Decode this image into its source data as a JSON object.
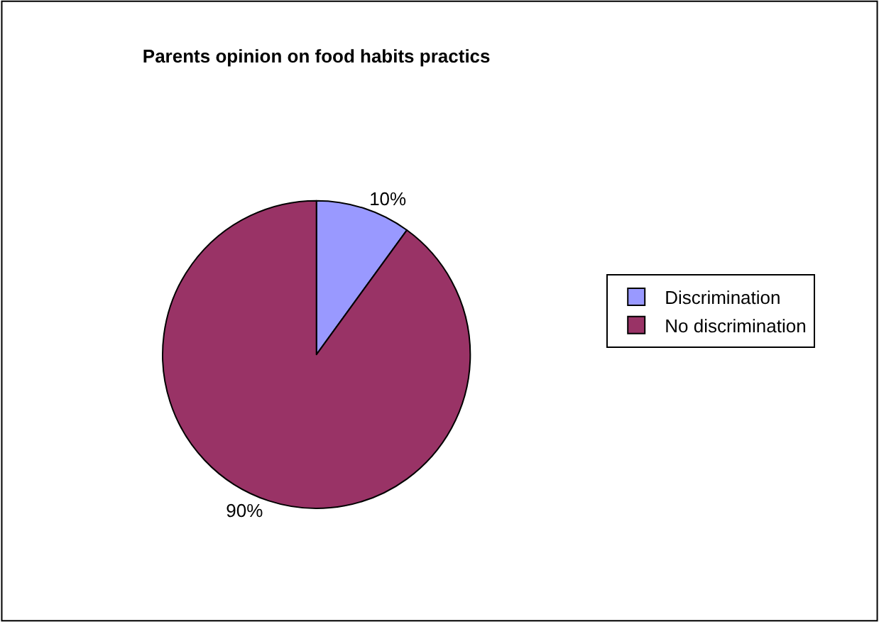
{
  "chart_data": {
    "type": "pie",
    "title": "Parents opinion on food habits practics",
    "categories": [
      "Discrimination",
      "No discrimination"
    ],
    "values": [
      10,
      90
    ],
    "colors": [
      "#9999ff",
      "#993366"
    ],
    "value_labels": [
      "10%",
      "90%"
    ],
    "legend": "right"
  }
}
